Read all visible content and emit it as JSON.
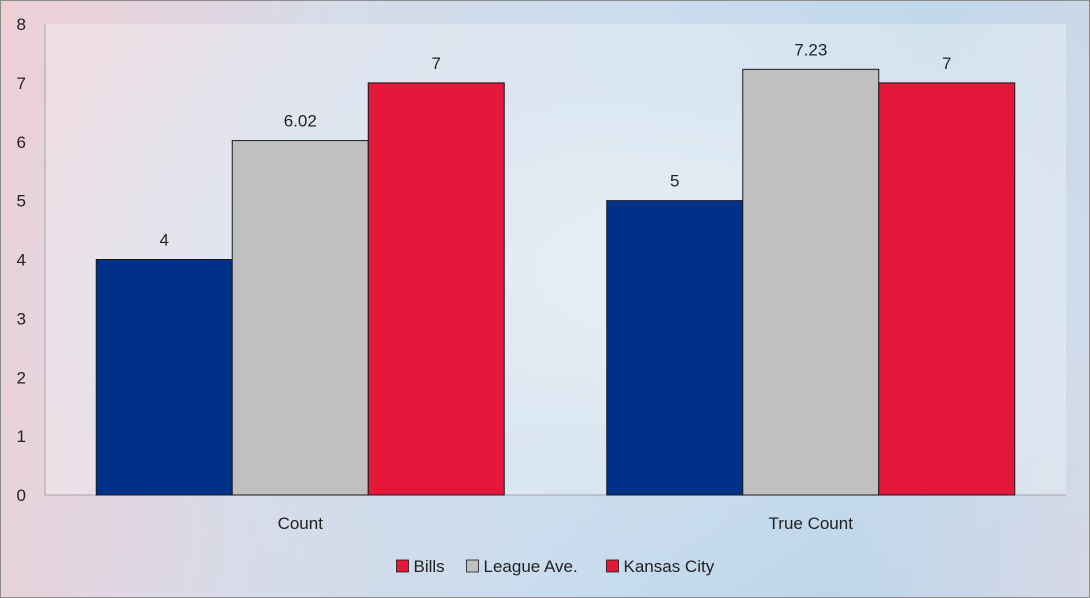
{
  "chart_data": {
    "type": "bar",
    "title": "",
    "xlabel": "",
    "ylabel": "",
    "categories": [
      "Count",
      "True Count"
    ],
    "series": [
      {
        "name": "Bills",
        "values": [
          4,
          5
        ],
        "color": "#003087",
        "legend_color": "#e3183a"
      },
      {
        "name": "League Ave.",
        "values": [
          6.02,
          7.23
        ],
        "color": "#c0c0c0",
        "legend_color": "#c0c0c0"
      },
      {
        "name": "Kansas City",
        "values": [
          7,
          7
        ],
        "color": "#e3183a",
        "legend_color": "#e3183a"
      }
    ],
    "data_labels": [
      [
        "4",
        "5"
      ],
      [
        "6.02",
        "7.23"
      ],
      [
        "7",
        "7"
      ]
    ],
    "ylim": [
      0,
      8
    ],
    "yticks": [
      "0",
      "1",
      "2",
      "3",
      "4",
      "5",
      "6",
      "7",
      "8"
    ],
    "grid": false,
    "legend_position": "bottom"
  }
}
